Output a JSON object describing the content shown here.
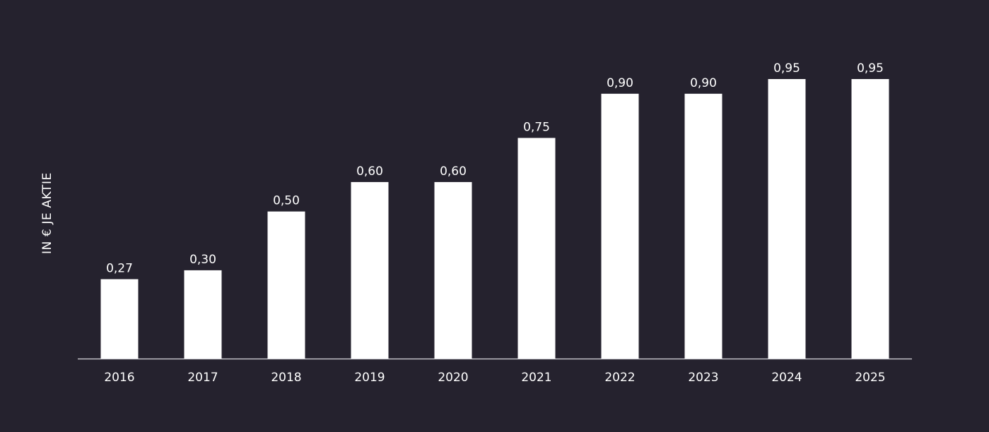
{
  "chart_data": {
    "type": "bar",
    "title": "",
    "xlabel": "",
    "ylabel": "IN € JE AKTIE",
    "categories": [
      "2016",
      "2017",
      "2018",
      "2019",
      "2020",
      "2021",
      "2022",
      "2023",
      "2024",
      "2025"
    ],
    "values": [
      0.27,
      0.3,
      0.5,
      0.6,
      0.6,
      0.75,
      0.9,
      0.9,
      0.95,
      0.95
    ],
    "value_labels": [
      "0,27",
      "0,30",
      "0,50",
      "0,60",
      "0,60",
      "0,75",
      "0,90",
      "0,90",
      "0,95",
      "0,95"
    ],
    "ylim": [
      0,
      0.95
    ],
    "grid": false,
    "legend": "none",
    "colors": {
      "background": "#25222e",
      "bar": "#ffffff",
      "text": "#ffffff",
      "axis": "#d9d9de"
    }
  }
}
